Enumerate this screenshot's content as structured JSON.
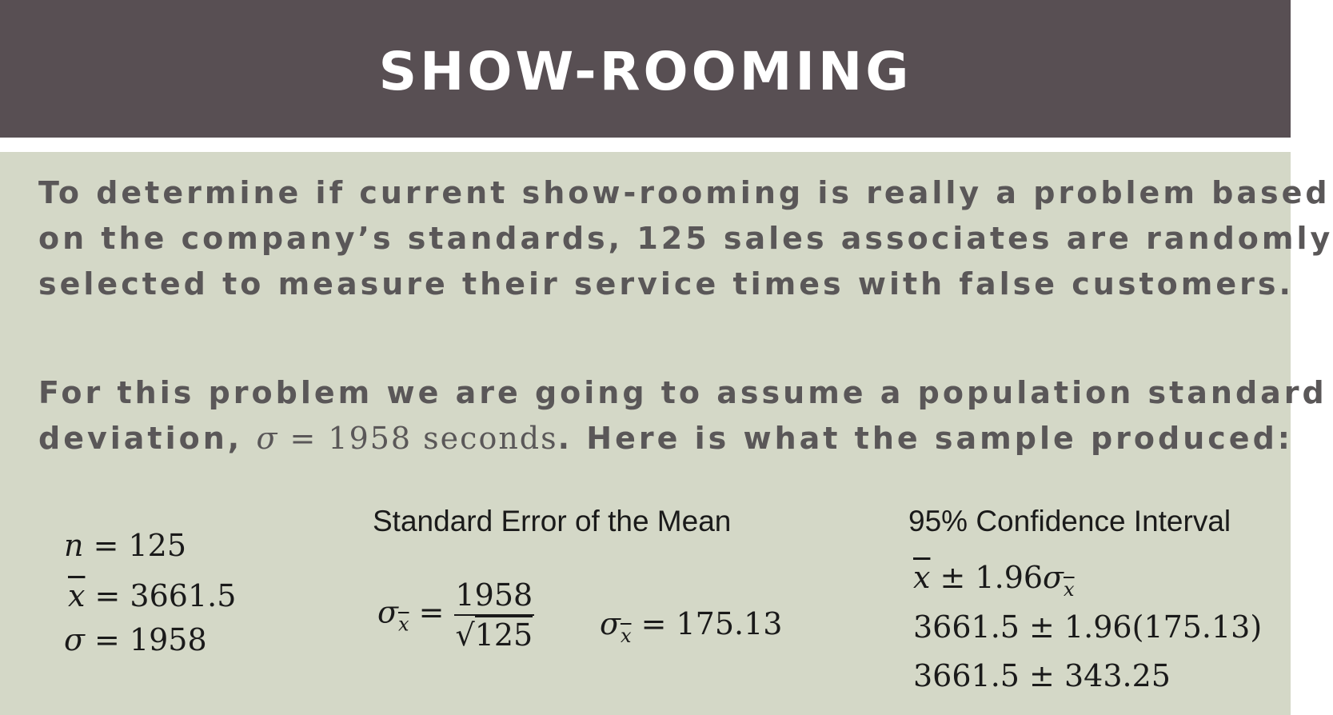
{
  "slide": {
    "title": "SHOW-ROOMING",
    "para1_line1": "To determine if current show-rooming is really a problem based",
    "para1_line2": "on the company’s standards, 125 sales associates are randomly",
    "para1_line3": "selected to measure their service times with false customers.",
    "para2_line1": "For this problem we are going to assume a population standard",
    "para2_prefix": "deviation, ",
    "para2_sigma": "σ",
    "para2_formula": " = 1958 seconds",
    "para2_suffix": ". Here is what the sample produced:"
  },
  "sample": {
    "n_symbol": "n",
    "n_value": " = 125",
    "xbar_symbol": "x",
    "xbar_value": " = 3661.5",
    "sigma_symbol": "σ",
    "sigma_value": " = 1958"
  },
  "standard_error": {
    "heading": "Standard Error of the Mean",
    "sigma": "σ",
    "sub_x": "x",
    "equals": " = ",
    "numerator": "1958",
    "sqrt_sign": "√",
    "denominator": "125",
    "result_sigma": "σ",
    "result_sub_x": "x",
    "result_value": " = 175.13"
  },
  "confidence_interval": {
    "heading": "95% Confidence Interval",
    "line1_xbar": "x",
    "line1_rest": " ± 1.96",
    "line1_sigma": "σ",
    "line1_sub_x": "x",
    "line2": "3661.5 ± 1.96(175.13)",
    "line3": "3661.5 ± 343.25"
  }
}
